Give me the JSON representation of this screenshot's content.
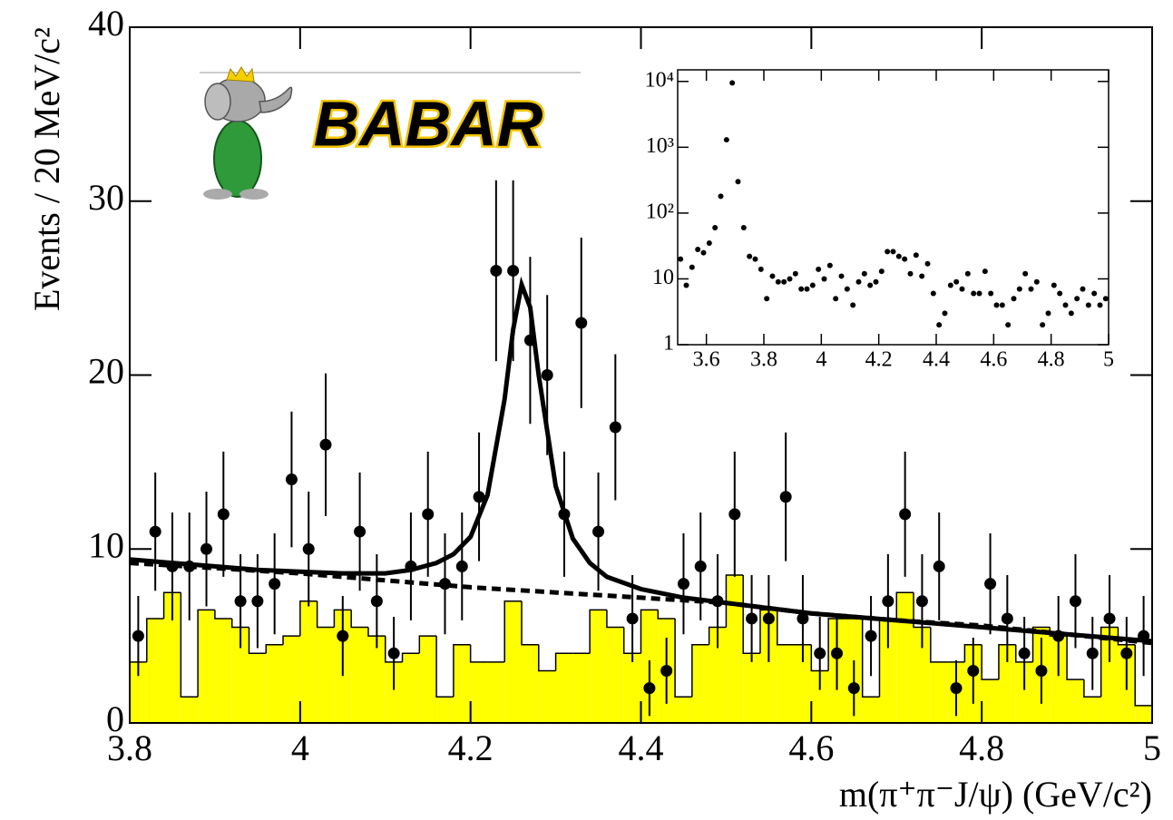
{
  "logo_text": "BABAR",
  "chart_data": [
    {
      "type": "errorbar",
      "xlabel": "m(π⁺π⁻J/ψ) (GeV/c²)",
      "ylabel": "Events / 20 MeV/c²",
      "xlim": [
        3.8,
        5
      ],
      "ylim": [
        0,
        40
      ],
      "xticks": [
        3.8,
        4,
        4.2,
        4.4,
        4.6,
        4.8,
        5
      ],
      "yticks": [
        0,
        10,
        20,
        30,
        40
      ],
      "marker_color": "#000000",
      "x": [
        3.81,
        3.83,
        3.85,
        3.87,
        3.89,
        3.91,
        3.93,
        3.95,
        3.97,
        3.99,
        4.01,
        4.03,
        4.05,
        4.07,
        4.09,
        4.11,
        4.13,
        4.15,
        4.17,
        4.19,
        4.21,
        4.23,
        4.25,
        4.27,
        4.29,
        4.31,
        4.33,
        4.35,
        4.37,
        4.39,
        4.41,
        4.43,
        4.45,
        4.47,
        4.49,
        4.51,
        4.53,
        4.55,
        4.57,
        4.59,
        4.61,
        4.63,
        4.65,
        4.67,
        4.69,
        4.71,
        4.73,
        4.75,
        4.77,
        4.79,
        4.81,
        4.83,
        4.85,
        4.87,
        4.89,
        4.91,
        4.93,
        4.95,
        4.97,
        4.99
      ],
      "values": [
        5,
        11,
        9,
        9,
        10,
        12,
        7,
        7,
        8,
        14,
        10,
        16,
        5,
        11,
        7,
        4,
        9,
        12,
        8,
        9,
        13,
        26,
        26,
        22,
        20,
        12,
        23,
        11,
        17,
        6,
        2,
        3,
        8,
        9,
        7,
        12,
        6,
        6,
        13,
        6,
        4,
        4,
        2,
        5,
        7,
        12,
        7,
        9,
        2,
        3,
        8,
        6,
        4,
        3,
        5,
        7,
        4,
        6,
        4,
        5
      ],
      "errors": [
        2.3,
        3.4,
        3.1,
        3.1,
        3.3,
        3.6,
        2.7,
        2.7,
        2.9,
        3.9,
        3.3,
        4.1,
        2.3,
        3.4,
        2.7,
        2.1,
        3.1,
        3.6,
        2.9,
        3.1,
        3.7,
        5.2,
        5.2,
        4.8,
        4.6,
        3.6,
        4.9,
        3.4,
        4.2,
        2.5,
        1.6,
        1.9,
        2.9,
        3.1,
        2.7,
        3.6,
        2.5,
        2.5,
        3.7,
        2.5,
        2.1,
        2.1,
        1.6,
        2.3,
        2.7,
        3.6,
        2.7,
        3.1,
        1.6,
        1.9,
        2.9,
        2.5,
        2.1,
        1.9,
        2.3,
        2.7,
        2.1,
        2.5,
        2.1,
        2.3
      ],
      "histogram": {
        "color": "#ffff00",
        "bins": [
          3.8,
          3.82,
          3.84,
          3.86,
          3.88,
          3.9,
          3.92,
          3.94,
          3.96,
          3.98,
          4,
          4.02,
          4.04,
          4.06,
          4.08,
          4.1,
          4.12,
          4.14,
          4.16,
          4.18,
          4.2,
          4.22,
          4.24,
          4.26,
          4.28,
          4.3,
          4.32,
          4.34,
          4.36,
          4.38,
          4.4,
          4.42,
          4.44,
          4.46,
          4.48,
          4.5,
          4.52,
          4.54,
          4.56,
          4.58,
          4.6,
          4.62,
          4.64,
          4.66,
          4.68,
          4.7,
          4.72,
          4.74,
          4.76,
          4.78,
          4.8,
          4.82,
          4.84,
          4.86,
          4.88,
          4.9,
          4.92,
          4.94,
          4.96,
          4.98,
          5
        ],
        "counts": [
          3.5,
          6,
          7.5,
          1.5,
          6.5,
          6,
          5.5,
          4,
          4.5,
          5,
          7,
          5.5,
          6.5,
          5.5,
          5,
          3.5,
          4,
          5,
          1.5,
          4.5,
          3.5,
          3.5,
          7,
          4.5,
          3,
          4,
          4,
          6.5,
          5.5,
          4,
          6.5,
          6,
          1.5,
          4.5,
          5.5,
          8.5,
          4,
          6.5,
          4.5,
          4.5,
          3,
          6,
          6,
          1.5,
          6,
          7.5,
          5.5,
          3.5,
          3.5,
          4.5,
          2.5,
          4.5,
          3.5,
          5.5,
          5,
          2.5,
          1.5,
          5.5,
          4.5,
          1
        ]
      },
      "fit": {
        "style": "solid",
        "x": [
          3.8,
          3.85,
          3.9,
          3.95,
          4,
          4.05,
          4.1,
          4.13,
          4.16,
          4.18,
          4.2,
          4.22,
          4.24,
          4.25,
          4.26,
          4.27,
          4.28,
          4.3,
          4.32,
          4.34,
          4.36,
          4.4,
          4.45,
          4.5,
          4.6,
          4.7,
          4.8,
          4.9,
          5
        ],
        "values": [
          9.4,
          9.2,
          9,
          8.8,
          8.7,
          8.6,
          8.6,
          8.8,
          9.2,
          9.7,
          10.7,
          13.1,
          18.6,
          22.6,
          25.2,
          23.9,
          20,
          13.6,
          10.6,
          9.2,
          8.4,
          7.7,
          7.2,
          6.9,
          6.3,
          5.9,
          5.5,
          5.1,
          4.7
        ]
      },
      "background": {
        "style": "dashed",
        "x": [
          3.8,
          3.9,
          4,
          4.1,
          4.2,
          4.3,
          4.4,
          4.5,
          4.6,
          4.7,
          4.8,
          4.9,
          5
        ],
        "values": [
          9.2,
          8.9,
          8.6,
          8.2,
          7.8,
          7.5,
          7.2,
          6.9,
          6.3,
          5.9,
          5.6,
          5.1,
          4.6
        ]
      }
    },
    {
      "type": "scatter",
      "log_y": true,
      "marker_color": "#000000",
      "xlim": [
        3.5,
        5
      ],
      "ylim": [
        1,
        15000
      ],
      "xticks": [
        3.6,
        3.8,
        4,
        4.2,
        4.4,
        4.6,
        4.8,
        5
      ],
      "yticks": [
        1,
        10,
        {
          "value": 100,
          "label": "10²"
        },
        {
          "value": 1000,
          "label": "10³"
        },
        {
          "value": 10000,
          "label": "10⁴"
        }
      ],
      "x": [
        3.51,
        3.53,
        3.55,
        3.57,
        3.59,
        3.61,
        3.63,
        3.65,
        3.67,
        3.69,
        3.71,
        3.73,
        3.75,
        3.77,
        3.79,
        3.81,
        3.83,
        3.85,
        3.87,
        3.89,
        3.91,
        3.93,
        3.95,
        3.97,
        3.99,
        4.01,
        4.03,
        4.05,
        4.07,
        4.09,
        4.11,
        4.13,
        4.15,
        4.17,
        4.19,
        4.21,
        4.23,
        4.25,
        4.27,
        4.29,
        4.31,
        4.33,
        4.35,
        4.37,
        4.39,
        4.41,
        4.43,
        4.45,
        4.47,
        4.49,
        4.51,
        4.53,
        4.55,
        4.57,
        4.59,
        4.61,
        4.63,
        4.65,
        4.67,
        4.69,
        4.71,
        4.73,
        4.75,
        4.77,
        4.79,
        4.81,
        4.83,
        4.85,
        4.87,
        4.89,
        4.91,
        4.93,
        4.95,
        4.97,
        4.99
      ],
      "values": [
        20,
        8,
        15,
        28,
        25,
        35,
        60,
        180,
        1300,
        9500,
        300,
        60,
        22,
        20,
        14,
        5,
        11,
        9,
        9,
        10,
        12,
        7,
        7,
        8,
        14,
        10,
        16,
        5,
        11,
        7,
        4,
        9,
        12,
        8,
        9,
        13,
        26,
        26,
        22,
        20,
        12,
        23,
        11,
        17,
        6,
        2,
        3,
        8,
        9,
        7,
        12,
        6,
        6,
        13,
        6,
        4,
        4,
        2,
        5,
        7,
        12,
        7,
        9,
        2,
        3,
        8,
        6,
        4,
        3,
        5,
        7,
        4,
        6,
        4,
        5
      ]
    }
  ]
}
